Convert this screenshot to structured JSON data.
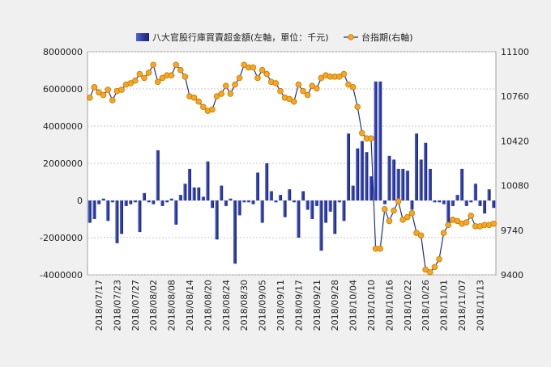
{
  "chart_data": {
    "type": "bar+line",
    "legend": [
      {
        "name": "八大官股行庫買賣超金額(左軸，單位：千元)",
        "kind": "bar",
        "color": "#2b3aa0"
      },
      {
        "name": "台指期(右軸)",
        "kind": "line",
        "color": "#f5a623",
        "line_color": "#1f2f8f"
      }
    ],
    "left_axis": {
      "min": -4000000,
      "max": 8000000,
      "ticks": [
        "8000000",
        "6000000",
        "4000000",
        "2000000",
        "0",
        "-2000000",
        "-4000000"
      ]
    },
    "right_axis": {
      "min": 9400,
      "max": 11100,
      "ticks": [
        "11100",
        "10760",
        "10420",
        "10080",
        "9740",
        "9400"
      ]
    },
    "x_ticks": [
      {
        "i": 2,
        "label": "2018/07/17"
      },
      {
        "i": 6,
        "label": "2018/07/23"
      },
      {
        "i": 10,
        "label": "2018/07/27"
      },
      {
        "i": 14,
        "label": "2018/08/02"
      },
      {
        "i": 18,
        "label": "2018/08/08"
      },
      {
        "i": 22,
        "label": "2018/08/14"
      },
      {
        "i": 26,
        "label": "2018/08/20"
      },
      {
        "i": 30,
        "label": "2018/08/24"
      },
      {
        "i": 34,
        "label": "2018/08/30"
      },
      {
        "i": 38,
        "label": "2018/09/05"
      },
      {
        "i": 42,
        "label": "2018/09/11"
      },
      {
        "i": 46,
        "label": "2018/09/17"
      },
      {
        "i": 50,
        "label": "2018/09/21"
      },
      {
        "i": 54,
        "label": "2018/09/28"
      },
      {
        "i": 58,
        "label": "2018/10/04"
      },
      {
        "i": 62,
        "label": "2018/10/10"
      },
      {
        "i": 66,
        "label": "2018/10/16"
      },
      {
        "i": 70,
        "label": "2018/10/22"
      },
      {
        "i": 74,
        "label": "2018/10/26"
      },
      {
        "i": 78,
        "label": "2018/11/01"
      },
      {
        "i": 82,
        "label": "2018/11/07"
      },
      {
        "i": 86,
        "label": "2018/11/13"
      }
    ],
    "series": [
      {
        "name": "八大官股行庫買賣超金額(左軸，單位：千元)",
        "type": "bar",
        "values": [
          -1200000,
          -1000000,
          -200000,
          100000,
          -1100000,
          -100000,
          -2300000,
          -1800000,
          -300000,
          -200000,
          -100000,
          -1700000,
          400000,
          -100000,
          -200000,
          2700000,
          -300000,
          -100000,
          100000,
          -1300000,
          300000,
          900000,
          1700000,
          700000,
          700000,
          200000,
          2100000,
          -400000,
          -2100000,
          800000,
          -300000,
          100000,
          -3400000,
          -800000,
          -100000,
          -100000,
          -200000,
          1500000,
          -1200000,
          2000000,
          500000,
          -100000,
          300000,
          -900000,
          600000,
          -100000,
          -2000000,
          500000,
          -500000,
          -1000000,
          -300000,
          -2700000,
          -1200000,
          -600000,
          -1800000,
          -100000,
          -1100000,
          3600000,
          800000,
          2800000,
          3200000,
          2600000,
          1300000,
          6400000,
          6400000,
          -200000,
          2400000,
          2200000,
          1700000,
          1700000,
          1600000,
          -500000,
          3600000,
          2200000,
          3100000,
          1700000,
          -100000,
          -100000,
          -200000,
          -1200000,
          -300000,
          300000,
          1700000,
          -300000,
          -100000,
          900000,
          -300000,
          -700000,
          600000,
          -400000
        ]
      },
      {
        "name": "台指期(右軸)",
        "type": "line",
        "values": [
          10750,
          10830,
          10790,
          10770,
          10810,
          10730,
          10800,
          10810,
          10850,
          10860,
          10880,
          10930,
          10900,
          10940,
          11000,
          10870,
          10900,
          10920,
          10920,
          11000,
          10960,
          10910,
          10760,
          10750,
          10720,
          10680,
          10650,
          10660,
          10760,
          10780,
          10840,
          10780,
          10850,
          10900,
          11000,
          10980,
          10980,
          10900,
          10960,
          10930,
          10870,
          10860,
          10800,
          10750,
          10740,
          10720,
          10850,
          10800,
          10770,
          10840,
          10820,
          10900,
          10920,
          10910,
          10910,
          10910,
          10930,
          10850,
          10830,
          10680,
          10480,
          10440,
          10440,
          9600,
          9600,
          9900,
          9810,
          9890,
          9960,
          9820,
          9840,
          9870,
          9720,
          9700,
          9440,
          9420,
          9460,
          9520,
          9720,
          9780,
          9820,
          9810,
          9790,
          9800,
          9850,
          9770,
          9770,
          9780,
          9780,
          9790
        ]
      }
    ]
  }
}
